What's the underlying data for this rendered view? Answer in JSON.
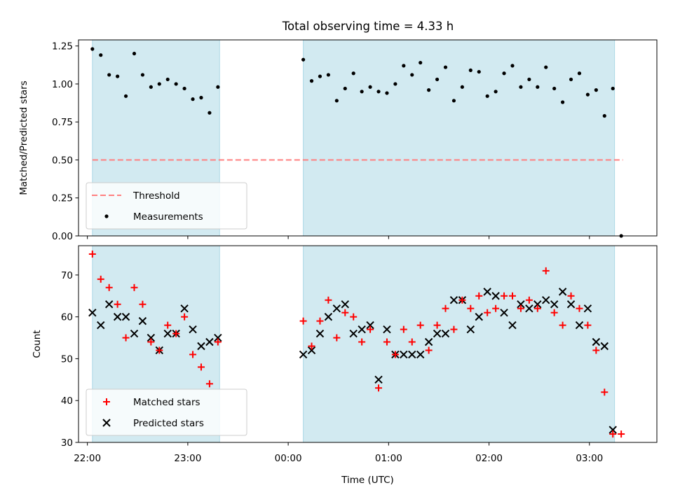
{
  "chart_data": [
    {
      "type": "scatter",
      "title": "Total observing time = 4.33 h",
      "xlabel": "",
      "ylabel": "Matched/Predicted stars",
      "ylim": [
        0,
        1.29
      ],
      "yticks": [
        "0.00",
        "0.25",
        "0.50",
        "0.75",
        "1.00",
        "1.25"
      ],
      "x_axis": "time (UTC), shared with lower panel",
      "shaded_intervals": [
        [
          "22:03",
          "23:19"
        ],
        [
          "00:09",
          "03:15"
        ]
      ],
      "shade_color": "#add8e6",
      "threshold": {
        "name": "Threshold",
        "value": 0.5,
        "x_range": [
          "22:03",
          "03:20"
        ],
        "color": "#ff7f7f",
        "style": "dashed"
      },
      "series": [
        {
          "name": "Measurements",
          "color": "#000000",
          "marker": "dot",
          "x": [
            "22:03",
            "22:08",
            "22:13",
            "22:18",
            "22:23",
            "22:28",
            "22:33",
            "22:38",
            "22:43",
            "22:48",
            "22:53",
            "22:58",
            "23:03",
            "23:08",
            "23:13",
            "23:18",
            "00:09",
            "00:14",
            "00:19",
            "00:24",
            "00:29",
            "00:34",
            "00:39",
            "00:44",
            "00:49",
            "00:54",
            "00:59",
            "01:04",
            "01:09",
            "01:14",
            "01:19",
            "01:24",
            "01:29",
            "01:34",
            "01:39",
            "01:44",
            "01:49",
            "01:54",
            "01:59",
            "02:04",
            "02:09",
            "02:14",
            "02:19",
            "02:24",
            "02:29",
            "02:34",
            "02:39",
            "02:44",
            "02:49",
            "02:54",
            "02:59",
            "03:04",
            "03:09",
            "03:14",
            "03:19"
          ],
          "y": [
            1.23,
            1.19,
            1.06,
            1.05,
            0.92,
            1.2,
            1.06,
            0.98,
            1.0,
            1.03,
            1.0,
            0.97,
            0.9,
            0.91,
            0.81,
            0.98,
            1.16,
            1.02,
            1.05,
            1.06,
            0.89,
            0.97,
            1.07,
            0.95,
            0.98,
            0.95,
            0.94,
            1.0,
            1.12,
            1.06,
            1.14,
            0.96,
            1.03,
            1.11,
            0.89,
            0.98,
            1.09,
            1.08,
            0.92,
            0.95,
            1.07,
            1.12,
            0.98,
            1.03,
            0.98,
            1.11,
            0.97,
            0.88,
            1.03,
            1.07,
            0.93,
            0.96,
            0.79,
            0.97,
            0.0
          ]
        }
      ],
      "legend": [
        "Threshold",
        "Measurements"
      ],
      "legend_position": "lower-left"
    },
    {
      "type": "scatter",
      "title": "",
      "xlabel": "Time (UTC)",
      "ylabel": "Count",
      "ylim": [
        30,
        77
      ],
      "yticks": [
        "30",
        "40",
        "50",
        "60",
        "70"
      ],
      "xticks": [
        "22:00",
        "23:00",
        "00:00",
        "01:00",
        "02:00",
        "03:00"
      ],
      "shaded_intervals": [
        [
          "22:03",
          "23:19"
        ],
        [
          "00:09",
          "03:15"
        ]
      ],
      "shade_color": "#add8e6",
      "x": [
        "22:03",
        "22:08",
        "22:13",
        "22:18",
        "22:23",
        "22:28",
        "22:33",
        "22:38",
        "22:43",
        "22:48",
        "22:53",
        "22:58",
        "23:03",
        "23:08",
        "23:13",
        "23:18",
        "00:09",
        "00:14",
        "00:19",
        "00:24",
        "00:29",
        "00:34",
        "00:39",
        "00:44",
        "00:49",
        "00:54",
        "00:59",
        "01:04",
        "01:09",
        "01:14",
        "01:19",
        "01:24",
        "01:29",
        "01:34",
        "01:39",
        "01:44",
        "01:49",
        "01:54",
        "01:59",
        "02:04",
        "02:09",
        "02:14",
        "02:19",
        "02:24",
        "02:29",
        "02:34",
        "02:39",
        "02:44",
        "02:49",
        "02:54",
        "02:59",
        "03:04",
        "03:09",
        "03:14",
        "03:19"
      ],
      "series": [
        {
          "name": "Matched stars",
          "color": "#ff0000",
          "marker": "plus",
          "values": [
            75,
            69,
            67,
            63,
            55,
            67,
            63,
            54,
            52,
            58,
            56,
            60,
            51,
            48,
            44,
            54,
            59,
            53,
            59,
            64,
            55,
            61,
            60,
            54,
            57,
            43,
            54,
            51,
            57,
            54,
            58,
            52,
            58,
            62,
            57,
            64,
            62,
            65,
            61,
            62,
            65,
            65,
            62,
            64,
            62,
            71,
            61,
            58,
            65,
            62,
            58,
            52,
            42,
            32,
            32
          ]
        },
        {
          "name": "Predicted stars",
          "color": "#000000",
          "marker": "x",
          "values": [
            61,
            58,
            63,
            60,
            60,
            56,
            59,
            55,
            52,
            56,
            56,
            62,
            57,
            53,
            54,
            55,
            51,
            52,
            56,
            60,
            62,
            63,
            56,
            57,
            58,
            45,
            57,
            51,
            51,
            51,
            51,
            54,
            56,
            56,
            64,
            64,
            57,
            60,
            66,
            65,
            61,
            58,
            63,
            62,
            63,
            64,
            63,
            66,
            63,
            58,
            62,
            54,
            53,
            33,
            null
          ]
        }
      ],
      "legend": [
        "Matched stars",
        "Predicted stars"
      ],
      "legend_position": "lower-left"
    }
  ]
}
